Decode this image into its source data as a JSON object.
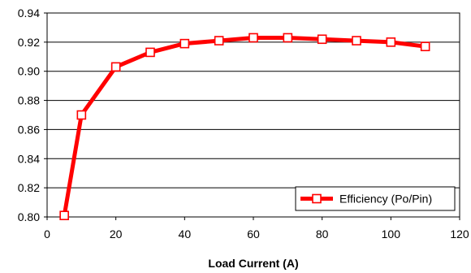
{
  "chart_data": {
    "type": "line",
    "title": "",
    "xlabel": "Load Current (A)",
    "ylabel": "",
    "xlim": [
      0,
      120
    ],
    "ylim": [
      0.8,
      0.94
    ],
    "xticks": [
      "0",
      "20",
      "40",
      "60",
      "80",
      "100",
      "120"
    ],
    "yticks": [
      "0.80",
      "0.82",
      "0.84",
      "0.86",
      "0.88",
      "0.90",
      "0.92",
      "0.94"
    ],
    "grid": "horizontal",
    "legend_position": "bottom-right",
    "series": [
      {
        "name": "Efficiency (Po/Pin)",
        "color": "#ff0000",
        "marker": "square",
        "x": [
          5,
          10,
          20,
          30,
          40,
          50,
          60,
          70,
          80,
          90,
          100,
          110
        ],
        "y": [
          0.801,
          0.87,
          0.903,
          0.913,
          0.919,
          0.921,
          0.923,
          0.923,
          0.922,
          0.921,
          0.92,
          0.917
        ]
      }
    ]
  }
}
